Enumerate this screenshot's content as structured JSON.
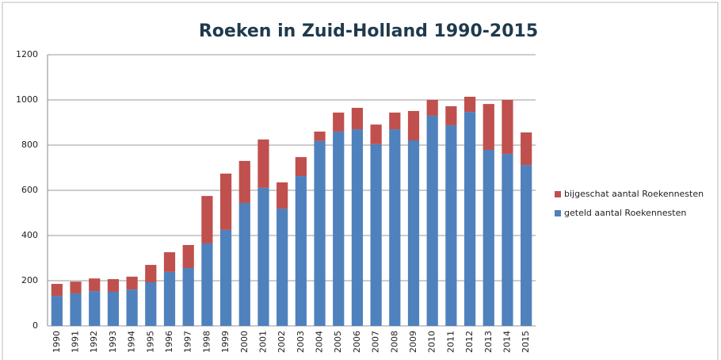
{
  "chart_data": {
    "type": "stacked_bar",
    "title": "Roeken in Zuid-Holland 1990-2015",
    "categories": [
      "1990",
      "1991",
      "1992",
      "1993",
      "1994",
      "1995",
      "1996",
      "1997",
      "1998",
      "1999",
      "2000",
      "2001",
      "2002",
      "2003",
      "2004",
      "2005",
      "2006",
      "2007",
      "2008",
      "2009",
      "2010",
      "2011",
      "2012",
      "2013",
      "2014",
      "2015"
    ],
    "series": [
      {
        "name": "geteld aantal Roekennesten",
        "color": "#4f81bd",
        "values": [
          133,
          144,
          154,
          151,
          161,
          193,
          239,
          256,
          365,
          425,
          544,
          611,
          519,
          663,
          818,
          860,
          870,
          804,
          870,
          821,
          930,
          888,
          947,
          779,
          761,
          712
        ]
      },
      {
        "name": "bijgeschat aantal Roekennesten",
        "color": "#c0504d",
        "values": [
          53,
          52,
          56,
          56,
          57,
          77,
          87,
          102,
          210,
          249,
          186,
          214,
          116,
          84,
          42,
          84,
          95,
          87,
          74,
          130,
          70,
          84,
          67,
          203,
          239,
          144
        ]
      }
    ],
    "ylim": [
      0,
      1200
    ],
    "yticks": [
      0,
      200,
      400,
      600,
      800,
      1000,
      1200
    ],
    "grid": true,
    "legend": "right"
  }
}
